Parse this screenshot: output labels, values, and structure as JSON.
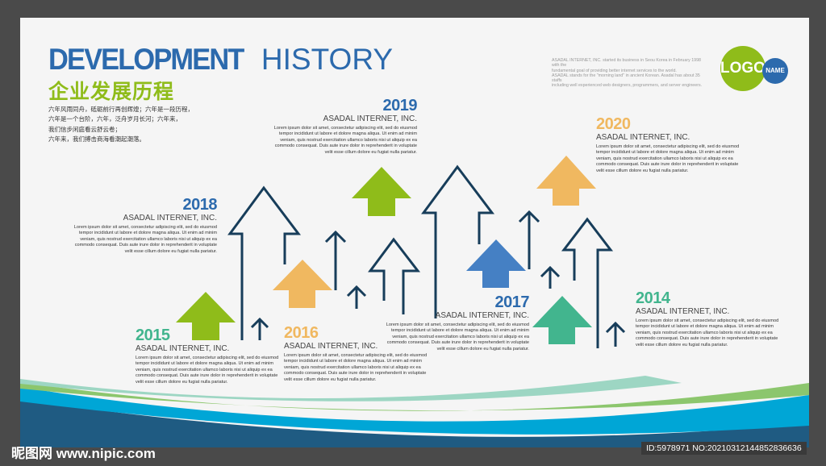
{
  "header": {
    "title_bold": "DEVELOPMENT",
    "title_light": "HISTORY",
    "subtitle": "企业发展历程",
    "intro_lines": [
      "六年风雨同舟，砥砺前行再创辉煌；六年是一段历程，",
      "六年是一个台阶，六年，泛舟岁月长河；六年来，",
      "我们信步闲庭看云舒云卷；",
      "六年来，我们搏击商海看潮起潮落。"
    ]
  },
  "about_lines": [
    "ASADAL INTERNET, INC. started its business in Seou Korea in February 1998 with the",
    "fundamental goal of providing better internet services to the world.",
    "ASADAL stands for the \"morning land\" in ancient Korean. Asadal has about 35 staffs",
    "including well experienced web designers, programmers, and server engineers."
  ],
  "logo": {
    "text": "LOGO",
    "name": "NAME"
  },
  "colors": {
    "green": "#8fbc1a",
    "orange": "#f0b860",
    "blue": "#4580c4",
    "teal": "#42b58e",
    "navy": "#173d5a",
    "title_blue": "#2c6aad"
  },
  "milestones": [
    {
      "year": "2019",
      "company": "ASADAL INTERNET, INC.",
      "color": "#2c6aad",
      "lines": [
        "Lorem ipsum dolor sit amet, consectetur adipiscing elit, sed do eiusmod",
        "tempor incididunt ut labore et dolore magna aliqua. Ut enim ad minim",
        "veniam, quis nostrud exercitation ullamco laboris nisi ut aliquip ex ea",
        "commodo consequat. Duis aute irure dolor in reprehenderit in voluptate",
        "velit esse cillum dolore eu fugiat nulla pariatur."
      ]
    },
    {
      "year": "2020",
      "company": "ASADAL INTERNET, INC.",
      "color": "#f0b860",
      "lines": [
        "Lorem ipsum dolor sit amet, consectetur adipiscing elit, sed do eiusmod",
        "tempor incididunt ut labore et dolore magna aliqua. Ut enim ad minim",
        "veniam, quis nostrud exercitation ullamco laboris nisi ut aliquip ex ea",
        "commodo consequat. Duis aute irure dolor in reprehenderit in voluptate",
        "velit esse cillum dolore eu fugiat nulla pariatur."
      ]
    },
    {
      "year": "2018",
      "company": "ASADAL INTERNET, INC.",
      "color": "#2c6aad",
      "lines": [
        "Lorem ipsum dolor sit amet, consectetur adipiscing elit, sed do eiusmod",
        "tempor incididunt ut labore et dolore magna aliqua. Ut enim ad minim",
        "veniam, quis nostrud exercitation ullamco laboris nisi ut aliquip ex ea",
        "commodo consequat. Duis aute irure dolor in reprehenderit in voluptate",
        "velit esse cillum dolore eu fugiat nulla pariatur."
      ]
    },
    {
      "year": "2015",
      "company": "ASADAL INTERNET, INC.",
      "color": "#42b58e",
      "lines": [
        "Lorem ipsum dolor sit amet, consectetur adipiscing elit, sed do eiusmod",
        "tempor incididunt ut labore et dolore magna aliqua. Ut enim ad minim",
        "veniam, quis nostrud exercitation ullamco laboris nisi ut aliquip ex ea",
        "commodo consequat. Duis aute irure dolor in reprehenderit in voluptate",
        "velit esse cillum dolore eu fugiat nulla pariatur."
      ]
    },
    {
      "year": "2016",
      "company": "ASADAL INTERNET, INC.",
      "color": "#f0b860",
      "lines": [
        "Lorem ipsum dolor sit amet, consectetur adipiscing elit, sed do eiusmod",
        "tempor incididunt ut labore et dolore magna aliqua. Ut enim ad minim",
        "veniam, quis nostrud exercitation ullamco laboris nisi ut aliquip ex ea",
        "commodo consequat. Duis aute irure dolor in reprehenderit in voluptate",
        "velit esse cillum dolore eu fugiat nulla pariatur."
      ]
    },
    {
      "year": "2017",
      "company": "ASADAL INTERNET, INC.",
      "color": "#2c6aad",
      "lines": [
        "Lorem ipsum dolor sit amet, consectetur adipiscing elit, sed do eiusmod",
        "tempor incididunt ut labore et dolore magna aliqua. Ut enim ad minim",
        "veniam, quis nostrud exercitation ullamco laboris nisi ut aliquip ex ea",
        "commodo consequat. Duis aute irure dolor in reprehenderit in voluptate",
        "velit esse cillum dolore eu fugiat nulla pariatur."
      ]
    },
    {
      "year": "2014",
      "company": "ASADAL INTERNET, INC.",
      "color": "#42b58e",
      "lines": [
        "Lorem ipsum dolor sit amet, consectetur adipiscing elit, sed do eiusmod",
        "tempor incididunt ut labore et dolore magna aliqua. Ut enim ad minim",
        "veniam, quis nostrud exercitation ullamco laboris nisi ut aliquip ex ea",
        "commodo consequat. Duis aute irure dolor in reprehenderit in voluptate",
        "velit esse cillum dolore eu fugiat nulla pariatur."
      ]
    }
  ],
  "watermark": {
    "site": "昵图网 www.nipic.com",
    "id": "ID:5978971 NO:20210312144852836636"
  }
}
